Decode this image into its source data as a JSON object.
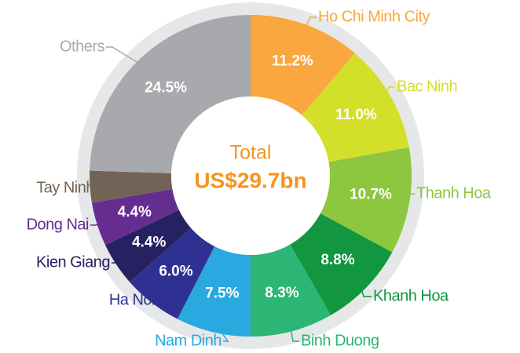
{
  "chart_data": {
    "type": "pie",
    "center_label": "Total",
    "center_value": "US$29.7bn",
    "categories": [
      "Ho Chi Minh City",
      "Bac Ninh",
      "Thanh Hoa",
      "Khanh Hoa",
      "Binh Duong",
      "Nam Dinh",
      "Ha Noi",
      "Kien Giang",
      "Dong Nai",
      "Tay Ninh",
      "Others"
    ],
    "values": [
      11.2,
      11.0,
      10.7,
      8.8,
      8.3,
      7.5,
      6.0,
      4.4,
      4.4,
      3.2,
      24.5
    ],
    "value_labels": [
      "11.2%",
      "11.0%",
      "10.7%",
      "8.8%",
      "8.3%",
      "7.5%",
      "6.0%",
      "4.4%",
      "4.4%",
      null,
      "24.5%"
    ],
    "colors": [
      "#f9a73e",
      "#d4df2a",
      "#8dc63f",
      "#12963f",
      "#2bb673",
      "#29a9e0",
      "#2e3192",
      "#262262",
      "#662d91",
      "#736357",
      "#a7a9ac"
    ]
  }
}
